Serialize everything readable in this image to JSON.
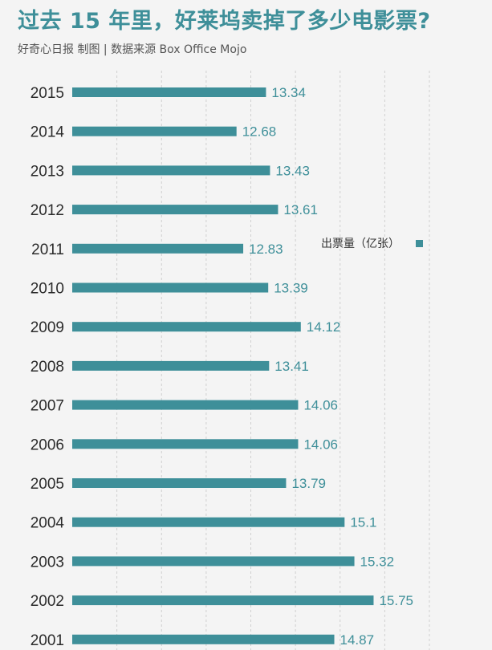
{
  "header": {
    "title": "过去 15 年里，好莱坞卖掉了多少电影票?",
    "subtitle": "好奇心日报 制图 | 数据来源 Box Office Mojo"
  },
  "colors": {
    "bar": "#3e8f99",
    "value_text": "#3e8f99",
    "grid": "#cfcfcf",
    "title": "#3e8f99"
  },
  "chart_data": {
    "type": "bar",
    "orientation": "horizontal",
    "categories": [
      "2015",
      "2014",
      "2013",
      "2012",
      "2011",
      "2010",
      "2009",
      "2008",
      "2007",
      "2006",
      "2005",
      "2004",
      "2003",
      "2002",
      "2001"
    ],
    "series": [
      {
        "name": "出票量（亿张）",
        "values": [
          13.34,
          12.68,
          13.43,
          13.61,
          12.83,
          13.39,
          14.12,
          13.41,
          14.06,
          14.06,
          13.79,
          15.1,
          15.32,
          15.75,
          14.87
        ]
      }
    ],
    "value_labels": [
      "13.34",
      "12.68",
      "13.43",
      "13.61",
      "12.83",
      "13.39",
      "14.12",
      "13.41",
      "14.06",
      "14.06",
      "13.79",
      "15.1",
      "15.32",
      "15.75",
      "14.87"
    ],
    "xlim": [
      9,
      17
    ],
    "grid": "vertical-dashed",
    "legend": {
      "placement": "right-middle"
    }
  }
}
